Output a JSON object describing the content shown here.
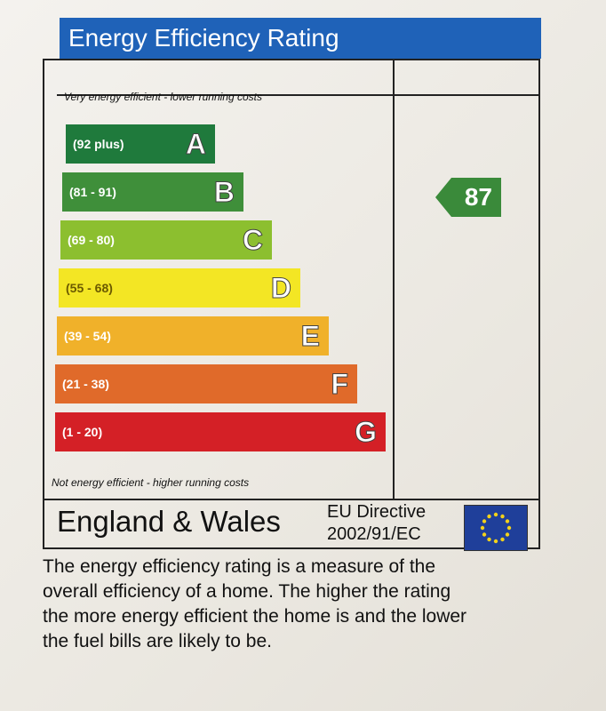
{
  "title": "Energy Efficiency Rating",
  "caption_top": "Very energy efficient - lower running costs",
  "caption_bottom": "Not energy efficient - higher running costs",
  "bands": [
    {
      "range": "(92 plus)",
      "letter": "A",
      "color": "#1f7a3c"
    },
    {
      "range": "(81 - 91)",
      "letter": "B",
      "color": "#3f8f3a"
    },
    {
      "range": "(69 - 80)",
      "letter": "C",
      "color": "#8cbf2f"
    },
    {
      "range": "(55 - 68)",
      "letter": "D",
      "color": "#f3e624"
    },
    {
      "range": "(39 - 54)",
      "letter": "E",
      "color": "#f0b12a"
    },
    {
      "range": "(21 - 38)",
      "letter": "F",
      "color": "#e06a2a"
    },
    {
      "range": "(1 - 20)",
      "letter": "G",
      "color": "#d42026"
    }
  ],
  "current_rating": "87",
  "region": "England & Wales",
  "directive_line1": "EU Directive",
  "directive_line2": "2002/91/EC",
  "description_lines": [
    "The energy efficiency rating is a measure of the",
    "overall efficiency of a home. The higher the rating",
    "the more energy efficient the home is and the lower",
    "the fuel bills are likely to be."
  ]
}
